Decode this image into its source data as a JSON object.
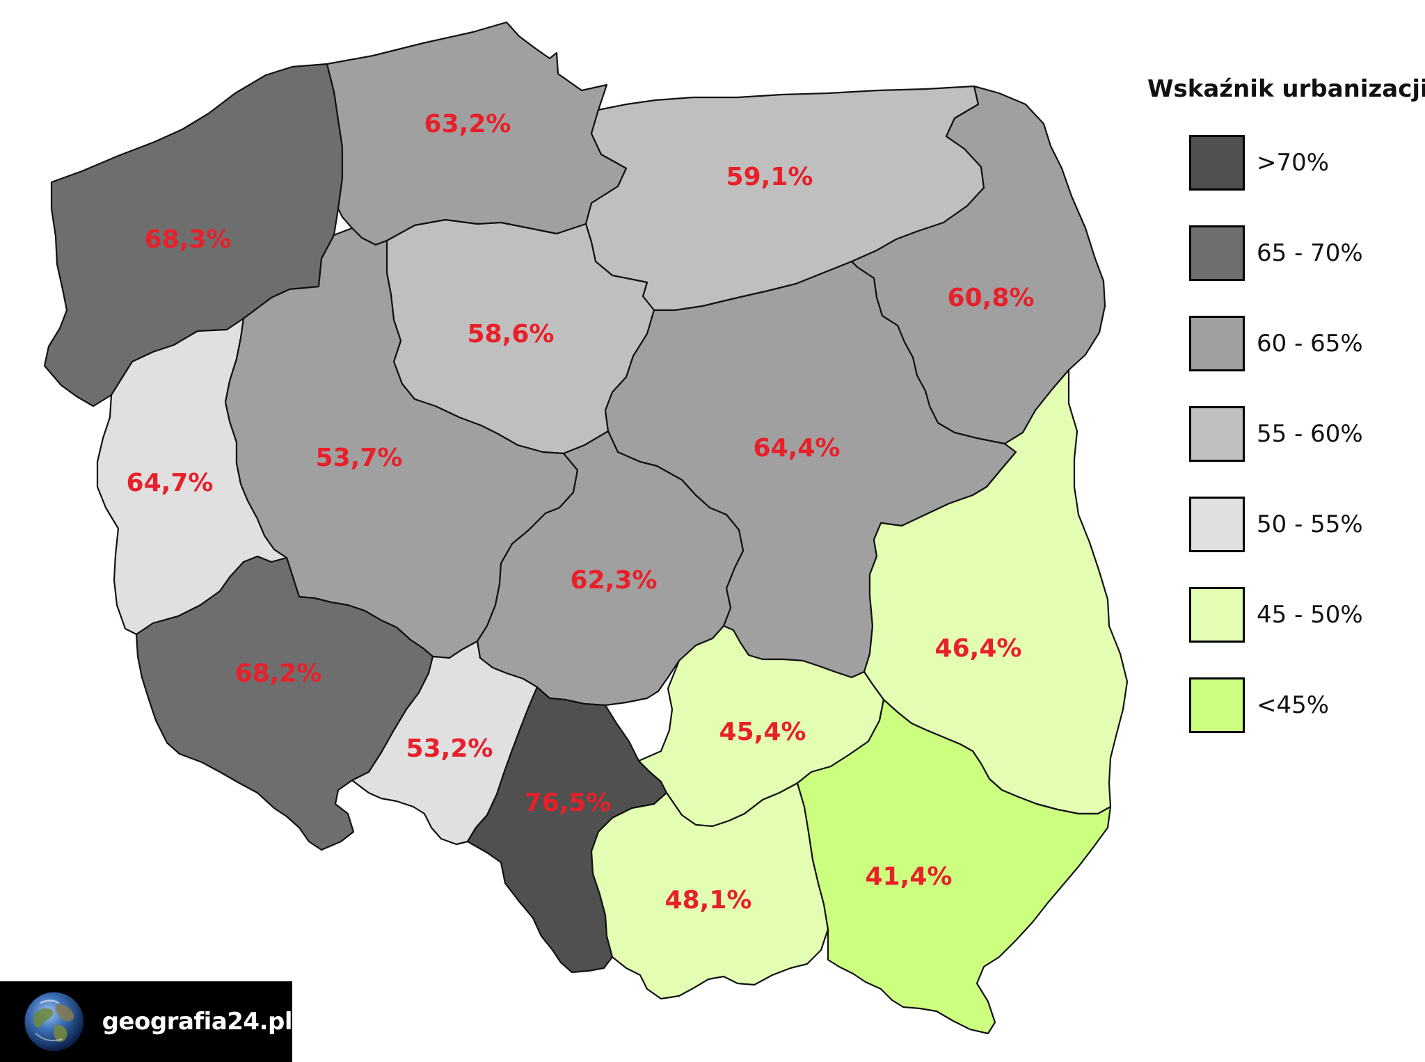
{
  "legend": {
    "title": "Wskaźnik urbanizacji",
    "classes": [
      {
        "label": ">70%",
        "color": "#505050"
      },
      {
        "label": "65 - 70%",
        "color": "#6e6e6e"
      },
      {
        "label": "60 - 65%",
        "color": "#a0a0a0"
      },
      {
        "label": "55 - 60%",
        "color": "#bfbfbf"
      },
      {
        "label": "50 - 55%",
        "color": "#e0e0e0"
      },
      {
        "label": "45 - 50%",
        "color": "#e3fdb3"
      },
      {
        "label": "<45%",
        "color": "#ccff80"
      }
    ]
  },
  "regions": [
    {
      "label": "68,3%",
      "value": 68.3,
      "class": 1
    },
    {
      "label": "63,2%",
      "value": 63.2,
      "class": 2
    },
    {
      "label": "59,1%",
      "value": 59.1,
      "class": 3
    },
    {
      "label": "60,8%",
      "value": 60.8,
      "class": 2
    },
    {
      "label": "58,6%",
      "value": 58.6,
      "class": 3
    },
    {
      "label": "64,4%",
      "value": 64.4,
      "class": 2
    },
    {
      "label": "53,7%",
      "value": 53.7,
      "class": 4
    },
    {
      "label": "64,7%",
      "value": 64.7,
      "class": 2
    },
    {
      "label": "62,3%",
      "value": 62.3,
      "class": 2
    },
    {
      "label": "46,4%",
      "value": 46.4,
      "class": 5
    },
    {
      "label": "68,2%",
      "value": 68.2,
      "class": 1
    },
    {
      "label": "53,2%",
      "value": 53.2,
      "class": 4
    },
    {
      "label": "76,5%",
      "value": 76.5,
      "class": 0
    },
    {
      "label": "45,4%",
      "value": 45.4,
      "class": 5
    },
    {
      "label": "48,1%",
      "value": 48.1,
      "class": 5
    },
    {
      "label": "41,4%",
      "value": 41.4,
      "class": 6
    }
  ],
  "badge": {
    "text": "geografia24.pl",
    "icon": "globe-icon"
  }
}
